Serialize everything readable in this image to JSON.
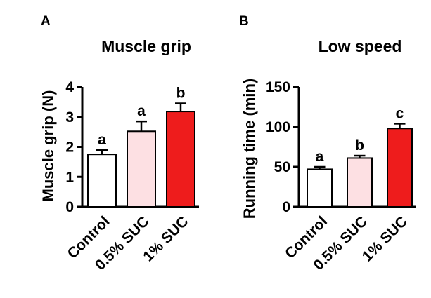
{
  "panels": [
    {
      "letter": "A"
    },
    {
      "letter": "B"
    }
  ],
  "chart_data": [
    {
      "type": "bar",
      "title": "Muscle grip",
      "xlabel": "",
      "ylabel": "Muscle grip (N)",
      "ylim": [
        0,
        4
      ],
      "yticks": [
        0,
        1,
        2,
        3,
        4
      ],
      "categories": [
        "Control",
        "0.5% SUC",
        "1% SUC"
      ],
      "values": [
        1.75,
        2.52,
        3.18
      ],
      "errors": [
        0.15,
        0.33,
        0.27
      ],
      "significance": [
        "a",
        "a",
        "b"
      ],
      "colors": [
        "#ffffff",
        "#fde0e3",
        "#ee1c1c"
      ]
    },
    {
      "type": "bar",
      "title": "Low speed",
      "xlabel": "",
      "ylabel": "Running time (min)",
      "ylim": [
        0,
        150
      ],
      "yticks": [
        0,
        50,
        100,
        150
      ],
      "categories": [
        "Control",
        "0.5% SUC",
        "1% SUC"
      ],
      "values": [
        47,
        61,
        98
      ],
      "errors": [
        3,
        3,
        6
      ],
      "significance": [
        "a",
        "b",
        "c"
      ],
      "colors": [
        "#ffffff",
        "#fde0e3",
        "#ee1c1c"
      ]
    }
  ]
}
